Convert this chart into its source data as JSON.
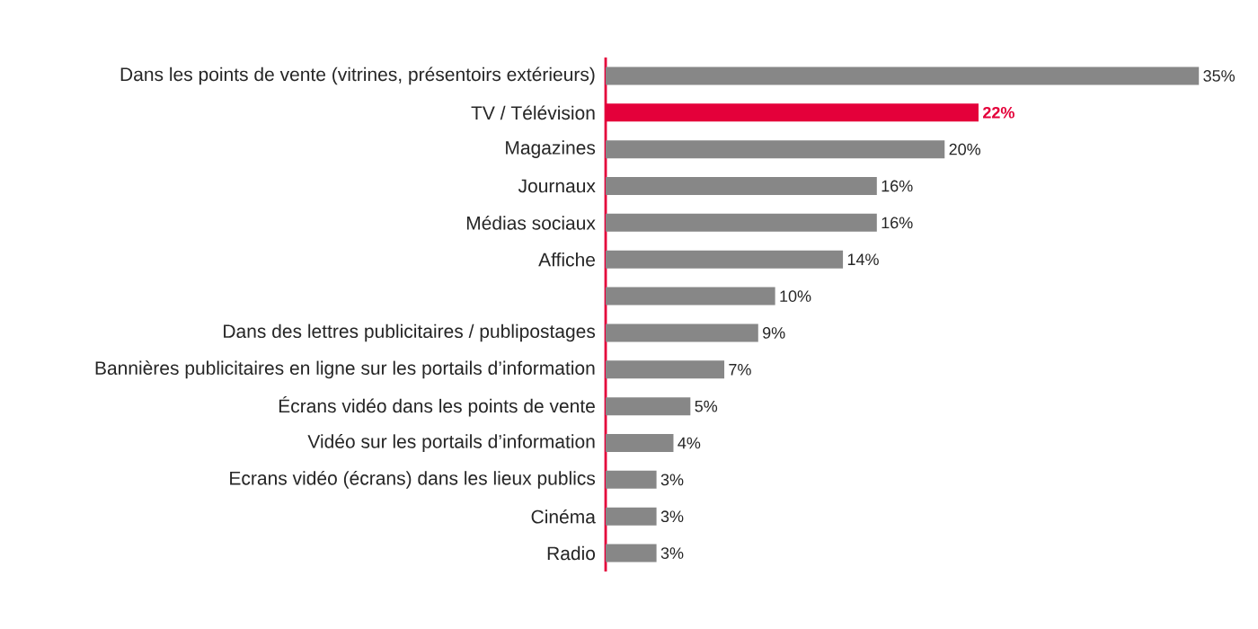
{
  "chart_data": {
    "type": "bar",
    "orientation": "horizontal",
    "categories": [
      "Dans les points de vente (vitrines, présentoirs extérieurs)",
      "TV / Télévision",
      "Magazines",
      "Journaux",
      "Médias sociaux",
      "Affiche",
      null,
      "Dans des lettres publicitaires / publipostages",
      "Bannières publicitaires en ligne sur les portails d’information",
      "Écrans vidéo dans les points de vente",
      "Vidéo sur les portails d’information",
      "Ecrans vidéo (écrans) dans les lieux publics",
      "Cinéma",
      "Radio"
    ],
    "values": [
      35,
      22,
      20,
      16,
      16,
      14,
      10,
      9,
      7,
      5,
      4,
      3,
      3,
      3
    ],
    "colors": [
      "#878787",
      "#e4003a",
      "#878787",
      "#878787",
      "#878787",
      "#878787",
      "#878787",
      "#878787",
      "#878787",
      "#878787",
      "#878787",
      "#878787",
      "#878787",
      "#878787"
    ],
    "value_labels": [
      "35%",
      "**22%**",
      "20%",
      "16%",
      "16%",
      "14%",
      "10%",
      "9%",
      "7%",
      "5%",
      "4%",
      "3%",
      "3%",
      "3%"
    ]
  }
}
